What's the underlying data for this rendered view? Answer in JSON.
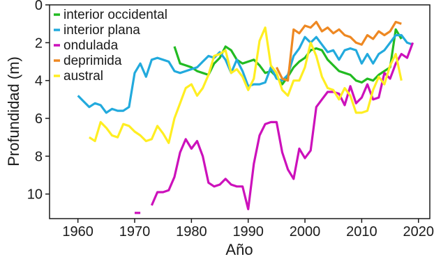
{
  "chart_data": {
    "type": "line",
    "xlabel": "Año",
    "ylabel": "Profundidad (m)",
    "xlim": [
      1955,
      2022
    ],
    "ylim": [
      0,
      11.3
    ],
    "y_inverted": true,
    "grid": false,
    "legend_position": "top-left",
    "xticks": [
      1960,
      1970,
      1980,
      1990,
      2000,
      2010,
      2020
    ],
    "yticks": [
      0,
      2,
      4,
      6,
      8,
      10
    ],
    "series": [
      {
        "name": "interior occidental",
        "color": "#22bb22",
        "points": [
          [
            1977,
            2.2
          ],
          [
            1978,
            3.1
          ],
          [
            1979,
            3.2
          ],
          [
            1980,
            3.3
          ],
          [
            1981,
            3.5
          ],
          [
            1982,
            3.6
          ],
          [
            1983,
            3.7
          ],
          [
            1984,
            3.1
          ],
          [
            1985,
            2.8
          ],
          [
            1986,
            2.2
          ],
          [
            1987,
            2.4
          ],
          [
            1988,
            2.9
          ],
          [
            1989,
            3.1
          ],
          [
            1990,
            3.0
          ],
          [
            1991,
            2.9
          ],
          [
            1992,
            3.2
          ],
          [
            1993,
            3.6
          ],
          [
            1994,
            3.5
          ],
          [
            1995,
            3.8
          ],
          [
            1996,
            4.2
          ],
          [
            1997,
            3.8
          ],
          [
            1998,
            3.3
          ],
          [
            1999,
            3.0
          ],
          [
            2000,
            2.8
          ],
          [
            2001,
            2.4
          ],
          [
            2002,
            2.3
          ],
          [
            2003,
            2.4
          ],
          [
            2004,
            2.9
          ],
          [
            2005,
            3.2
          ],
          [
            2006,
            3.5
          ],
          [
            2007,
            3.6
          ],
          [
            2008,
            3.7
          ],
          [
            2009,
            4.0
          ],
          [
            2010,
            4.1
          ],
          [
            2011,
            3.9
          ],
          [
            2012,
            4.0
          ],
          [
            2013,
            3.7
          ],
          [
            2014,
            3.5
          ],
          [
            2015,
            3.3
          ],
          [
            2016,
            1.3
          ],
          [
            2017,
            1.8
          ]
        ]
      },
      {
        "name": "interior plana",
        "color": "#22aadd",
        "points": [
          [
            1960,
            4.8
          ],
          [
            1961,
            5.1
          ],
          [
            1962,
            5.4
          ],
          [
            1963,
            5.2
          ],
          [
            1964,
            5.3
          ],
          [
            1965,
            5.7
          ],
          [
            1966,
            5.5
          ],
          [
            1967,
            5.6
          ],
          [
            1968,
            5.6
          ],
          [
            1969,
            5.4
          ],
          [
            1970,
            3.6
          ],
          [
            1971,
            3.1
          ],
          [
            1972,
            3.8
          ],
          [
            1973,
            2.9
          ],
          [
            1974,
            2.8
          ],
          [
            1975,
            2.9
          ],
          [
            1976,
            3.0
          ],
          [
            1977,
            3.5
          ],
          [
            1978,
            3.6
          ],
          [
            1979,
            3.5
          ],
          [
            1980,
            3.4
          ],
          [
            1981,
            3.3
          ],
          [
            1982,
            3.0
          ],
          [
            1983,
            2.7
          ],
          [
            1984,
            2.8
          ],
          [
            1985,
            2.5
          ],
          [
            1986,
            2.9
          ],
          [
            1987,
            3.6
          ],
          [
            1988,
            2.9
          ],
          [
            1989,
            3.5
          ],
          [
            1990,
            4.3
          ],
          [
            1991,
            4.2
          ],
          [
            1992,
            4.2
          ],
          [
            1993,
            4.1
          ],
          [
            1994,
            3.3
          ],
          [
            1995,
            3.9
          ],
          [
            1996,
            4.0
          ],
          [
            1997,
            3.7
          ],
          [
            1998,
            2.7
          ],
          [
            1999,
            2.3
          ],
          [
            2000,
            1.7
          ],
          [
            2001,
            2.0
          ],
          [
            2002,
            1.7
          ],
          [
            2003,
            2.1
          ],
          [
            2004,
            2.5
          ],
          [
            2005,
            2.4
          ],
          [
            2006,
            2.9
          ],
          [
            2007,
            2.4
          ],
          [
            2008,
            2.3
          ],
          [
            2009,
            2.4
          ],
          [
            2010,
            3.1
          ],
          [
            2011,
            2.6
          ],
          [
            2012,
            3.1
          ],
          [
            2013,
            2.6
          ],
          [
            2014,
            2.4
          ],
          [
            2015,
            2.0
          ],
          [
            2016,
            1.6
          ],
          [
            2017,
            1.6
          ],
          [
            2018,
            2.0
          ],
          [
            2019,
            2.1
          ]
        ]
      },
      {
        "name": "ondulada",
        "color": "#cc11bb",
        "points": [
          [
            1970,
            11.0
          ],
          [
            1971,
            11.0
          ],
          [
            1973,
            10.6
          ],
          [
            1974,
            9.9
          ],
          [
            1975,
            9.9
          ],
          [
            1976,
            9.8
          ],
          [
            1977,
            9.1
          ],
          [
            1978,
            7.8
          ],
          [
            1979,
            7.1
          ],
          [
            1980,
            7.6
          ],
          [
            1981,
            7.2
          ],
          [
            1982,
            8.0
          ],
          [
            1983,
            9.4
          ],
          [
            1984,
            9.6
          ],
          [
            1985,
            9.5
          ],
          [
            1986,
            9.2
          ],
          [
            1987,
            9.5
          ],
          [
            1988,
            9.6
          ],
          [
            1989,
            9.6
          ],
          [
            1990,
            10.8
          ],
          [
            1991,
            8.4
          ],
          [
            1992,
            6.9
          ],
          [
            1993,
            6.3
          ],
          [
            1994,
            6.2
          ],
          [
            1995,
            6.2
          ],
          [
            1996,
            7.8
          ],
          [
            1997,
            8.7
          ],
          [
            1998,
            9.2
          ],
          [
            1999,
            7.6
          ],
          [
            2000,
            8.1
          ],
          [
            2001,
            7.7
          ],
          [
            2002,
            5.4
          ],
          [
            2003,
            5.0
          ],
          [
            2004,
            4.6
          ],
          [
            2005,
            4.6
          ],
          [
            2006,
            4.7
          ],
          [
            2007,
            5.3
          ],
          [
            2008,
            4.3
          ],
          [
            2009,
            5.2
          ],
          [
            2010,
            4.9
          ],
          [
            2011,
            4.2
          ],
          [
            2012,
            5.0
          ],
          [
            2013,
            4.9
          ],
          [
            2014,
            3.6
          ],
          [
            2015,
            3.9
          ],
          [
            2016,
            3.1
          ],
          [
            2017,
            2.6
          ],
          [
            2018,
            2.8
          ],
          [
            2019,
            2.0
          ]
        ]
      },
      {
        "name": "deprimida",
        "color": "#ee8822",
        "points": [
          [
            1995,
            3.3
          ],
          [
            1996,
            3.9
          ],
          [
            1997,
            4.0
          ],
          [
            1998,
            1.3
          ],
          [
            1999,
            1.5
          ],
          [
            2000,
            1.1
          ],
          [
            2001,
            1.2
          ],
          [
            2002,
            0.9
          ],
          [
            2003,
            1.4
          ],
          [
            2004,
            1.2
          ],
          [
            2005,
            1.5
          ],
          [
            2006,
            1.3
          ],
          [
            2007,
            1.6
          ],
          [
            2008,
            1.7
          ],
          [
            2009,
            2.0
          ],
          [
            2010,
            2.1
          ],
          [
            2011,
            1.6
          ],
          [
            2012,
            1.8
          ],
          [
            2013,
            1.4
          ],
          [
            2014,
            1.6
          ],
          [
            2015,
            1.4
          ],
          [
            2016,
            0.9
          ],
          [
            2017,
            1.0
          ]
        ]
      },
      {
        "name": "austral",
        "color": "#ffee22",
        "points": [
          [
            1962,
            7.0
          ],
          [
            1963,
            7.2
          ],
          [
            1964,
            6.2
          ],
          [
            1965,
            6.5
          ],
          [
            1966,
            6.9
          ],
          [
            1967,
            7.0
          ],
          [
            1968,
            6.3
          ],
          [
            1969,
            6.4
          ],
          [
            1970,
            6.7
          ],
          [
            1971,
            6.9
          ],
          [
            1972,
            7.2
          ],
          [
            1973,
            7.1
          ],
          [
            1974,
            6.4
          ],
          [
            1975,
            6.8
          ],
          [
            1976,
            7.3
          ],
          [
            1977,
            6.0
          ],
          [
            1978,
            5.2
          ],
          [
            1979,
            4.4
          ],
          [
            1980,
            4.2
          ],
          [
            1981,
            4.8
          ],
          [
            1982,
            4.4
          ],
          [
            1983,
            3.7
          ],
          [
            1984,
            2.7
          ],
          [
            1985,
            2.6
          ],
          [
            1986,
            2.4
          ],
          [
            1987,
            3.6
          ],
          [
            1988,
            3.4
          ],
          [
            1989,
            3.8
          ],
          [
            1990,
            4.5
          ],
          [
            1991,
            3.9
          ],
          [
            1992,
            1.9
          ],
          [
            1993,
            1.2
          ],
          [
            1994,
            3.2
          ],
          [
            1995,
            3.6
          ],
          [
            1996,
            4.5
          ],
          [
            1997,
            4.8
          ],
          [
            1998,
            4.0
          ],
          [
            1999,
            4.0
          ],
          [
            2000,
            3.3
          ],
          [
            2001,
            2.0
          ],
          [
            2002,
            2.7
          ],
          [
            2003,
            3.8
          ],
          [
            2004,
            4.4
          ],
          [
            2005,
            4.5
          ],
          [
            2006,
            5.0
          ],
          [
            2007,
            4.4
          ],
          [
            2008,
            4.8
          ],
          [
            2009,
            5.7
          ],
          [
            2010,
            5.7
          ],
          [
            2011,
            5.6
          ],
          [
            2012,
            4.5
          ],
          [
            2013,
            3.8
          ],
          [
            2014,
            4.2
          ],
          [
            2015,
            3.2
          ],
          [
            2016,
            2.6
          ],
          [
            2017,
            4.0
          ]
        ]
      }
    ]
  }
}
